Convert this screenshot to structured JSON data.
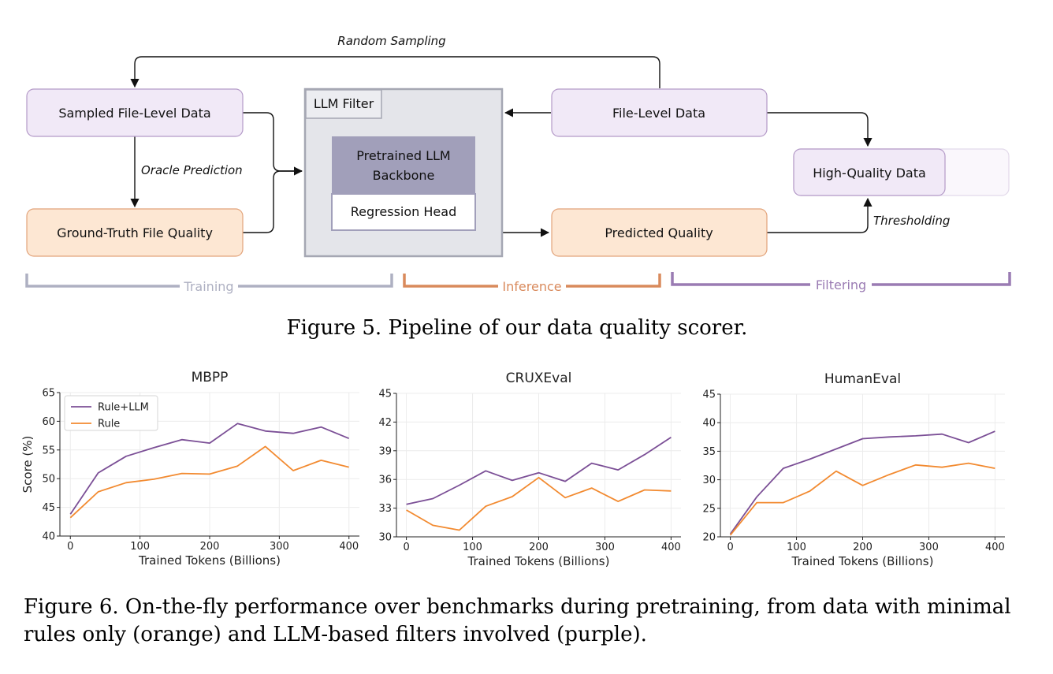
{
  "diagram": {
    "nodes": {
      "sampled": "Sampled File-Level Data",
      "ground_truth": "Ground-Truth File Quality",
      "llm_filter": "LLM Filter",
      "backbone_line1": "Pretrained LLM",
      "backbone_line2": "Backbone",
      "regression_head": "Regression Head",
      "file_level": "File-Level Data",
      "predicted": "Predicted Quality",
      "high_quality": "High-Quality Data"
    },
    "edges": {
      "random_sampling": "Random Sampling",
      "oracle_prediction": "Oracle Prediction",
      "thresholding": "Thresholding"
    },
    "stages": {
      "training": "Training",
      "inference": "Inference",
      "filtering": "Filtering"
    },
    "colors": {
      "purple_fill": "#f1e9f7",
      "purple_stroke": "#b49ac8",
      "orange_fill": "#fde7d3",
      "orange_stroke": "#e2a37a",
      "filter_fill": "#e4e5ea",
      "filter_stroke": "#a5a7b3",
      "backbone_fill": "#a19fba",
      "training": "#aeb0c2",
      "inference": "#d98a5c",
      "filtering": "#9a7bb3"
    }
  },
  "captions": {
    "fig5": "Figure 5. Pipeline of our data quality scorer.",
    "fig6_line1": "Figure 6. On-the-fly performance over benchmarks during pretraining, from data with minimal",
    "fig6_line2": "rules only (orange) and LLM-based filters involved (purple)."
  },
  "chart_data": [
    {
      "type": "line",
      "title": "MBPP",
      "xlabel": "Trained Tokens (Billions)",
      "ylabel": "Score (%)",
      "x": [
        0,
        40,
        80,
        120,
        160,
        200,
        240,
        280,
        320,
        360,
        400
      ],
      "xticks": [
        0,
        100,
        200,
        300,
        400
      ],
      "yticks": [
        40,
        45,
        50,
        55,
        60,
        65
      ],
      "xlim": [
        -15,
        415
      ],
      "ylim": [
        40,
        65
      ],
      "grid": true,
      "legend": "top-left",
      "series": [
        {
          "name": "Rule+LLM",
          "color": "#7b4f96",
          "values": [
            43.8,
            51.0,
            53.9,
            55.4,
            56.8,
            56.2,
            59.6,
            58.3,
            57.9,
            59.0,
            57.0
          ]
        },
        {
          "name": "Rule",
          "color": "#f28a30",
          "values": [
            43.2,
            47.7,
            49.3,
            49.9,
            50.9,
            50.8,
            52.2,
            55.6,
            51.4,
            53.2,
            52.0
          ]
        }
      ]
    },
    {
      "type": "line",
      "title": "CRUXEval",
      "xlabel": "Trained Tokens (Billions)",
      "ylabel": "",
      "x": [
        0,
        40,
        80,
        120,
        160,
        200,
        240,
        280,
        320,
        360,
        400
      ],
      "xticks": [
        0,
        100,
        200,
        300,
        400
      ],
      "yticks": [
        30,
        33,
        36,
        39,
        42,
        45
      ],
      "xlim": [
        -15,
        415
      ],
      "ylim": [
        30,
        45
      ],
      "grid": true,
      "series": [
        {
          "color": "#7b4f96",
          "values": [
            33.4,
            34.0,
            35.4,
            36.9,
            35.9,
            36.7,
            35.8,
            37.7,
            37.0,
            38.6,
            40.4
          ]
        },
        {
          "color": "#f28a30",
          "values": [
            32.8,
            31.2,
            30.7,
            33.2,
            34.2,
            36.2,
            34.1,
            35.1,
            33.7,
            34.9,
            34.8
          ]
        }
      ]
    },
    {
      "type": "line",
      "title": "HumanEval",
      "xlabel": "Trained Tokens (Billions)",
      "ylabel": "",
      "x": [
        0,
        40,
        80,
        120,
        160,
        200,
        240,
        280,
        320,
        360,
        400
      ],
      "xticks": [
        0,
        100,
        200,
        300,
        400
      ],
      "yticks": [
        20,
        25,
        30,
        35,
        40,
        45
      ],
      "xlim": [
        -15,
        415
      ],
      "ylim": [
        20,
        45
      ],
      "grid": true,
      "series": [
        {
          "color": "#7b4f96",
          "values": [
            20.5,
            27.0,
            32.0,
            33.6,
            35.4,
            37.2,
            37.5,
            37.7,
            38.0,
            36.5,
            38.5
          ]
        },
        {
          "color": "#f28a30",
          "values": [
            20.3,
            26.0,
            26.0,
            28.0,
            31.5,
            29.0,
            30.9,
            32.6,
            32.2,
            32.9,
            32.0
          ]
        }
      ]
    }
  ]
}
